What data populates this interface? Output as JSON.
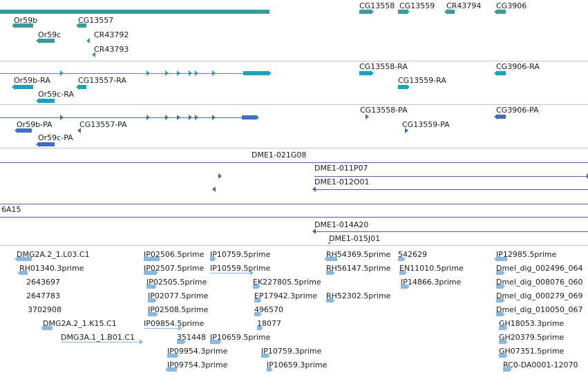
{
  "colors": {
    "gene": "#3d9a9a",
    "mrna": "#1aa3bd",
    "cds": "#3f6fc1",
    "clone": "#6e55a0",
    "est": "#8ab9e0",
    "separator": "#c4c4c4",
    "label": "#1a1a1a"
  },
  "tracks": {
    "genes": {
      "labels": [
        "Or59b",
        "CG13557",
        "Or59c",
        "CR43792",
        "CR43793",
        "CG13558",
        "CG13559",
        "CR43794",
        "CG3906"
      ]
    },
    "transcripts": {
      "labels": [
        "Or59b-RA",
        "CG13557-RA",
        "Or59c-RA",
        "CG13558-RA",
        "CG13559-RA",
        "CG3906-RA"
      ]
    },
    "proteins": {
      "labels": [
        "Or59b-PA",
        "CG13557-PA",
        "Or59c-PA",
        "CG13558-PA",
        "CG13559-PA",
        "CG3906-PA"
      ]
    },
    "clones": {
      "labels": [
        "DME1-021G08",
        "DME1-011P07",
        "DME1-012O01",
        "6A15",
        "DME1-014A20",
        "DME1-015J01"
      ]
    },
    "ests": {
      "labels": [
        "DMG2A.2_1.L03.C1",
        "RH01340.3prime",
        "2643697",
        "2647783",
        "3702908",
        "DMG2A.2_1.K15.C1",
        "DMG3A.1_1.B01.C1",
        "IP02506.5prime",
        "IP02507.5prime",
        "IP02505.5prime",
        "IP02077.5prime",
        "IP02508.5prime",
        "IP09854.5prime",
        "351448",
        "IP09954.3prime",
        "IP09754.3prime",
        "IP10759.5prime",
        "IP10559.5prime",
        "IP10659.5prime",
        "EK227805.5prime",
        "EP17942.3prime",
        "496570",
        "18077",
        "IP10759.3prime",
        "IP10659.3prime",
        "RH54369.5prime",
        "RH56147.5prime",
        "RH52302.5prime",
        "542629",
        "EN11010.5prime",
        "IP14866.3prime",
        "IP12985.5prime",
        "Dmel_dig_002496_064",
        "Dmel_dig_008076_060",
        "Dmel_dig_000279_069",
        "Dmel_dig_010050_067",
        "GH18053.3prime",
        "GH20379.5prime",
        "GH07351.5prime",
        "RC0-DA0001-12070"
      ]
    }
  }
}
